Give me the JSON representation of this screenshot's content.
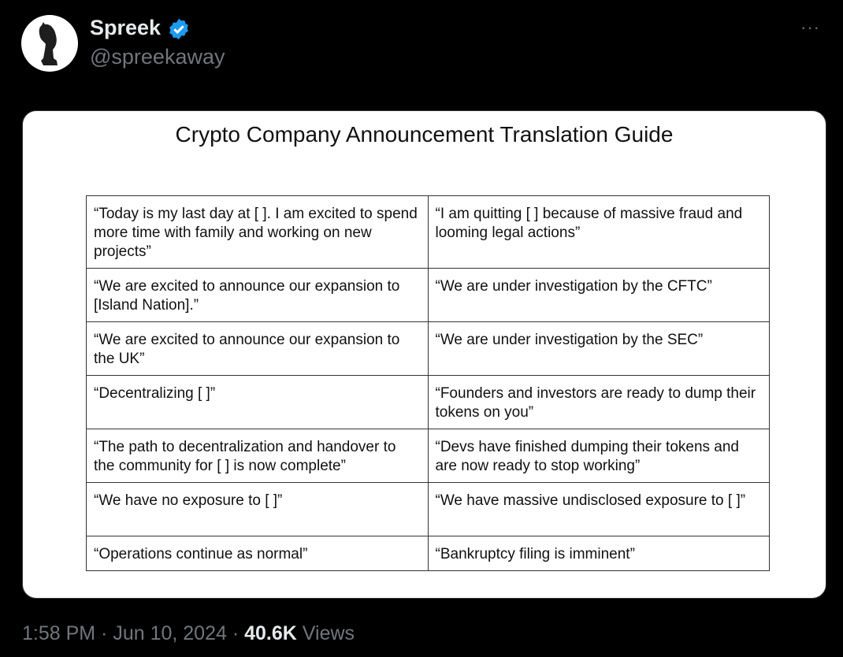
{
  "author": {
    "name": "Spreek",
    "handle": "@spreekaway",
    "verified": true,
    "avatar_icon": "chess-knight-icon"
  },
  "more_label": "···",
  "image": {
    "title": "Crypto Company Announcement Translation Guide",
    "rows": [
      [
        "“Today is my last day at [ ]. I am excited to spend more time with family and working on new projects”",
        "“I am quitting [ ] because of massive fraud and looming legal actions”"
      ],
      [
        "“We are excited to announce our expansion to [Island Nation].”",
        "“We are under investigation by the CFTC”"
      ],
      [
        "“We are excited to announce our expansion to the UK”",
        "“We are under investigation by the SEC”"
      ],
      [
        "“Decentralizing [ ]”",
        "“Founders and investors are ready to dump their tokens on you”"
      ],
      [
        "“The path to decentralization and handover to the community for [ ] is now complete”",
        "“Devs have finished dumping their tokens and are now ready to stop working”"
      ],
      [
        "“We have no exposure to [ ]”",
        "“We have massive undisclosed exposure to [ ]”"
      ],
      [
        "“Operations continue as normal”",
        "“Bankruptcy filing is imminent”"
      ]
    ]
  },
  "meta": {
    "time": "1:58 PM",
    "date": "Jun 10, 2024",
    "views_count": "40.6K",
    "views_label": "Views"
  },
  "colors": {
    "verified_badge": "#1d9bf0",
    "background": "#000000",
    "muted": "#71767b"
  }
}
